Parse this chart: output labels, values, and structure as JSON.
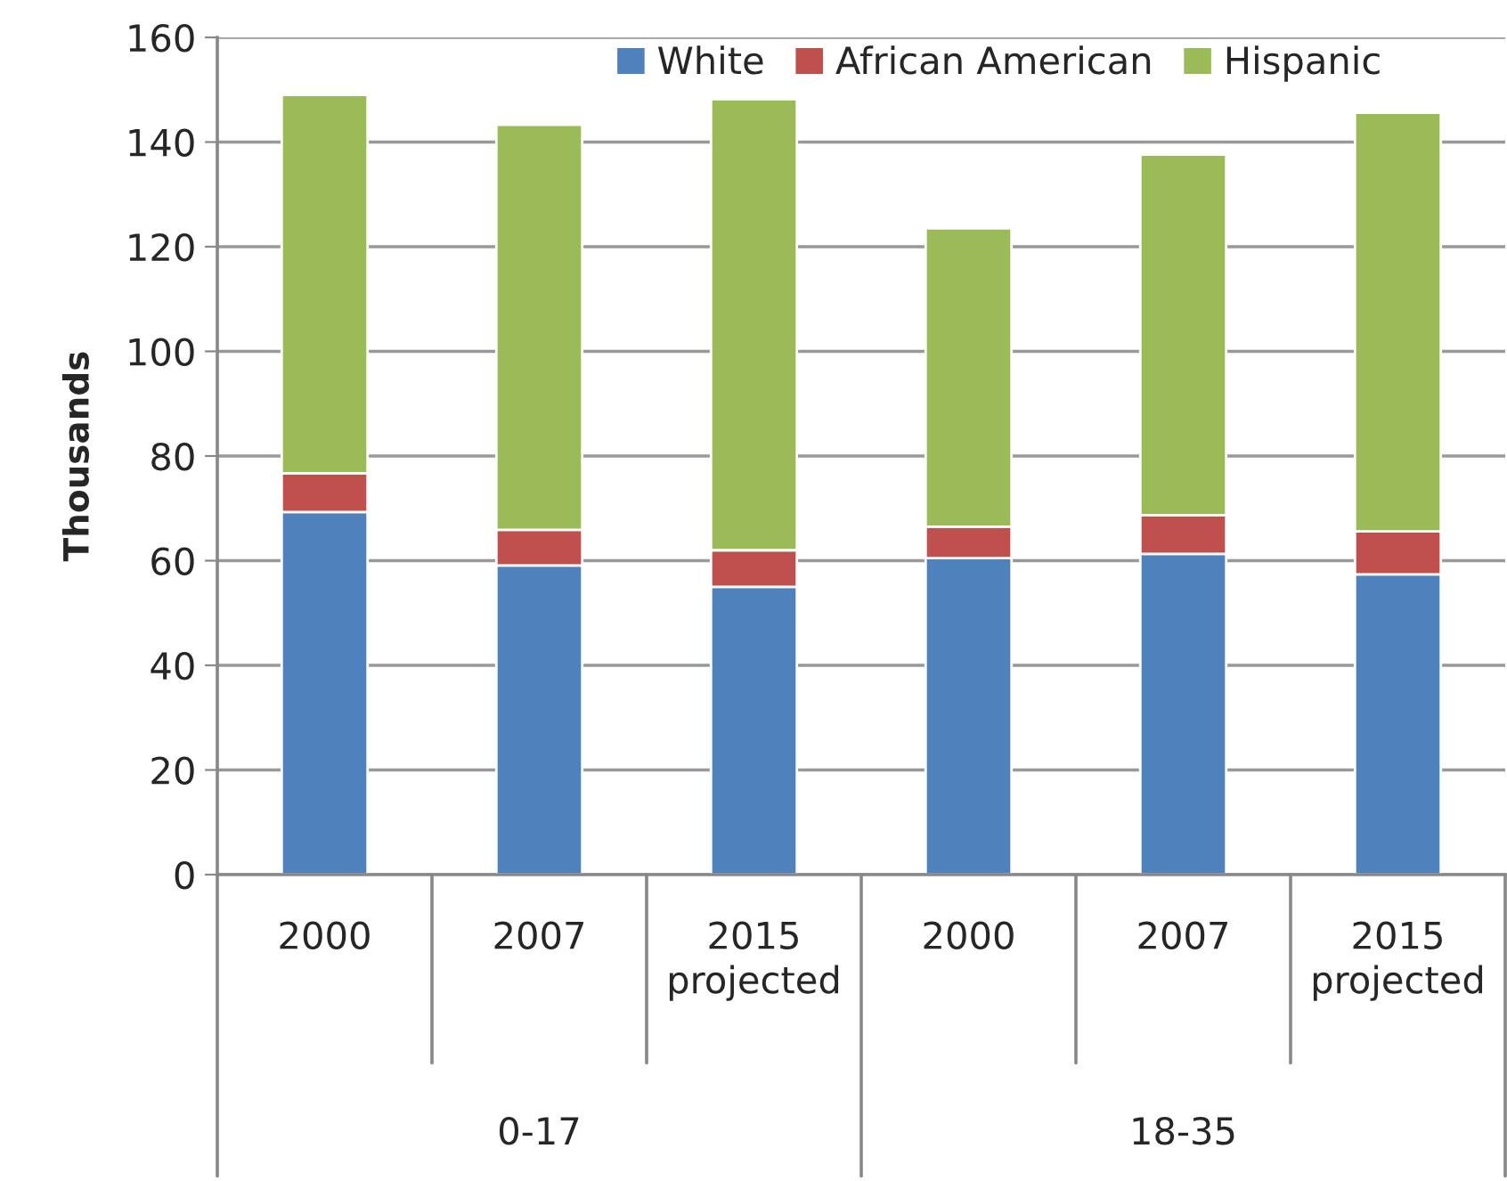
{
  "chart_data": {
    "type": "bar",
    "stacked": true,
    "ylabel": "Thousands",
    "categories": [
      "2000",
      "2007",
      "2015\nprojected",
      "2000",
      "2007",
      "2015\nprojected"
    ],
    "series": [
      {
        "name": "White",
        "color": "#4f81bd",
        "values": [
          69.3,
          59.1,
          55.0,
          60.5,
          61.3,
          57.4
        ]
      },
      {
        "name": "African American",
        "color": "#c0504d",
        "values": [
          7.4,
          6.8,
          7.0,
          6.0,
          7.4,
          8.2
        ]
      },
      {
        "name": "Hispanic",
        "color": "#9bbb59",
        "values": [
          72.3,
          77.4,
          86.2,
          57.0,
          68.9,
          80.0
        ]
      }
    ],
    "annotations": [
      "0-17",
      "18-35"
    ],
    "ylim": [
      0,
      160
    ],
    "yticks": [
      0,
      20,
      40,
      60,
      80,
      100,
      120,
      140,
      160
    ],
    "grid": "y",
    "legend": "top right"
  }
}
